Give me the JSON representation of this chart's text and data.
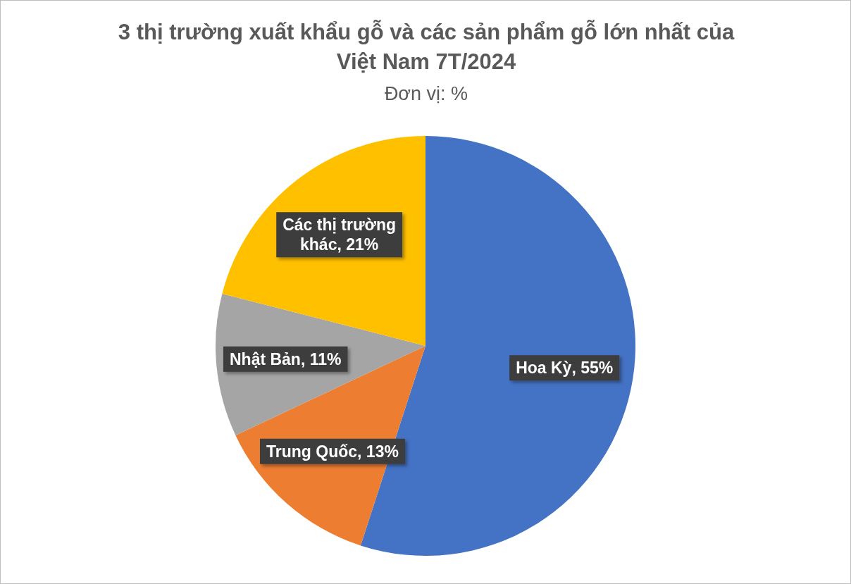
{
  "chart_data": {
    "type": "pie",
    "title": "3 thị trường xuất khẩu gỗ và các sản phẩm gỗ lớn nhất của Việt Nam 7T/2024",
    "subtitle": "Đơn vị: %",
    "categories": [
      "Hoa Kỳ",
      "Trung Quốc",
      "Nhật Bản",
      "Các thị trường khác"
    ],
    "values": [
      55,
      13,
      11,
      21
    ],
    "colors": [
      "#4472c4",
      "#ed7d31",
      "#a5a5a5",
      "#ffc000"
    ],
    "value_labels": [
      "55%",
      "13%",
      "11%",
      "21%"
    ]
  }
}
